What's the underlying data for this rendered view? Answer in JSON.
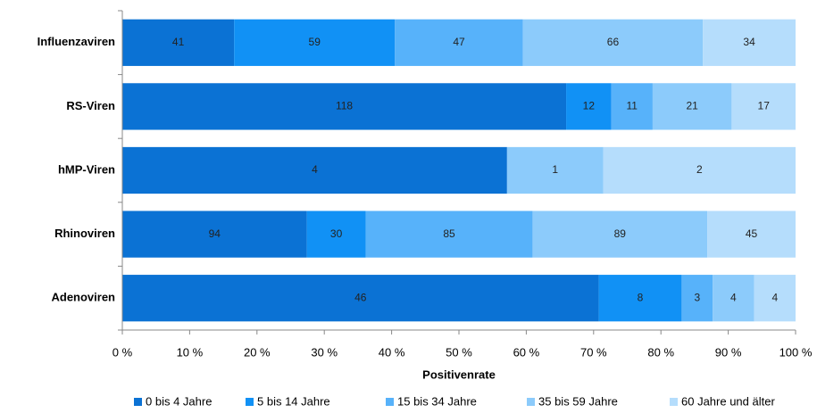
{
  "chart_data": {
    "type": "bar",
    "orientation": "horizontal",
    "stacking": "percent",
    "categories": [
      "Influenzaviren",
      "RS-Viren",
      "hMP-Viren",
      "Rhinoviren",
      "Adenoviren"
    ],
    "series": [
      {
        "name": "0 bis 4 Jahre",
        "color": "#0b72d4",
        "values": [
          41,
          118,
          4,
          94,
          46
        ]
      },
      {
        "name": "5 bis 14 Jahre",
        "color": "#1191f5",
        "values": [
          59,
          12,
          null,
          30,
          8
        ]
      },
      {
        "name": "15 bis 34 Jahre",
        "color": "#57b2fa",
        "values": [
          47,
          11,
          null,
          85,
          3
        ]
      },
      {
        "name": "35 bis 59 Jahre",
        "color": "#8ccbfb",
        "values": [
          66,
          21,
          1,
          89,
          4
        ]
      },
      {
        "name": "60 Jahre und älter",
        "color": "#b5ddfc",
        "values": [
          34,
          17,
          2,
          45,
          4
        ]
      }
    ],
    "x_label": "Positivenrate",
    "xlim": [
      0,
      100
    ],
    "xticks": [
      {
        "value": 0,
        "label": "0 %"
      },
      {
        "value": 10,
        "label": "10 %"
      },
      {
        "value": 20,
        "label": "20 %"
      },
      {
        "value": 30,
        "label": "30 %"
      },
      {
        "value": 40,
        "label": "40 %"
      },
      {
        "value": 50,
        "label": "50 %"
      },
      {
        "value": 60,
        "label": "60 %"
      },
      {
        "value": 70,
        "label": "70 %"
      },
      {
        "value": 80,
        "label": "80 %"
      },
      {
        "value": 90,
        "label": "90 %"
      },
      {
        "value": 100,
        "label": "100 %"
      }
    ],
    "grid": false,
    "legend": "bottom"
  }
}
